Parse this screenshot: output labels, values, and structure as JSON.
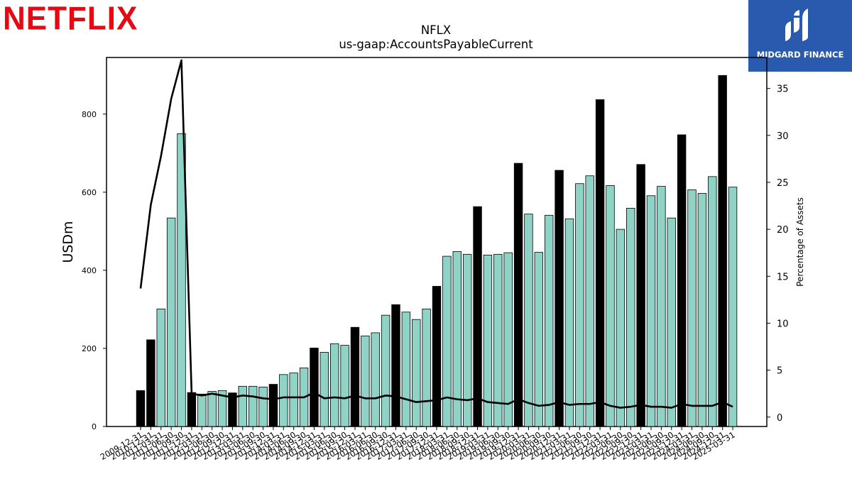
{
  "brand_left": {
    "name": "NETFLIX",
    "color": "#E50914"
  },
  "brand_right": {
    "name": "MIDGARD FINANCE",
    "icon": "midgard-logo-icon",
    "background": "#2a5aad"
  },
  "colors": {
    "bar_annual": "#000000",
    "bar_quarterly": "#8fd3c6",
    "line": "#000000"
  },
  "chart_data": {
    "type": "bar",
    "title": "NFLX",
    "subtitle": "us-gaap:AccountsPayableCurrent",
    "ylabel": "USDm",
    "y2label": "Percentage of Assets",
    "ylim": [
      0,
      945
    ],
    "y2lim": [
      -1,
      38.3
    ],
    "yticks": [
      "0",
      "200",
      "400",
      "600",
      "800"
    ],
    "y2ticks": [
      "0",
      "5",
      "10",
      "15",
      "20",
      "25",
      "30",
      "35"
    ],
    "grid": false,
    "categories": [
      "2009-12-31",
      "2010-12-31",
      "2011-03-31",
      "2011-06-30",
      "2011-09-30",
      "2011-12-31",
      "2012-03-31",
      "2012-06-30",
      "2012-09-30",
      "2012-12-31",
      "2013-03-31",
      "2013-06-30",
      "2013-09-30",
      "2013-12-31",
      "2014-03-31",
      "2014-06-30",
      "2014-09-30",
      "2014-12-31",
      "2015-03-31",
      "2015-06-30",
      "2015-09-30",
      "2015-12-31",
      "2016-03-31",
      "2016-06-30",
      "2016-09-30",
      "2016-12-31",
      "2017-03-31",
      "2017-06-30",
      "2017-09-30",
      "2017-12-31",
      "2018-03-31",
      "2018-06-30",
      "2018-09-30",
      "2018-12-31",
      "2019-03-31",
      "2019-06-30",
      "2019-09-30",
      "2019-12-31",
      "2020-03-31",
      "2020-06-30",
      "2020-09-30",
      "2020-12-31",
      "2021-03-31",
      "2021-06-30",
      "2021-09-30",
      "2021-12-31",
      "2022-03-31",
      "2022-06-30",
      "2022-09-30",
      "2022-12-31",
      "2023-03-31",
      "2023-06-30",
      "2023-09-30",
      "2023-12-31",
      "2024-03-31",
      "2024-06-30",
      "2024-09-30",
      "2024-12-31",
      "2025-03-31"
    ],
    "series": [
      {
        "type": "bar",
        "values": [
          92,
          222,
          301,
          534,
          750,
          87,
          83,
          90,
          92,
          86,
          103,
          103,
          101,
          108,
          133,
          137,
          150,
          201,
          190,
          212,
          208,
          254,
          232,
          240,
          285,
          312,
          293,
          274,
          301,
          359,
          436,
          448,
          441,
          563,
          439,
          441,
          445,
          674,
          544,
          446,
          541,
          656,
          532,
          622,
          642,
          837,
          617,
          505,
          559,
          671,
          591,
          615,
          534,
          747,
          606,
          597,
          640,
          899,
          613
        ]
      },
      {
        "type": "line",
        "axis": "right",
        "values": [
          13.7,
          22.6,
          27.8,
          33.9,
          38.0,
          2.5,
          2.3,
          2.5,
          2.3,
          2.1,
          2.3,
          2.2,
          2.0,
          1.9,
          2.1,
          2.1,
          2.1,
          2.6,
          2.0,
          2.1,
          2.0,
          2.3,
          2.0,
          2.0,
          2.3,
          2.2,
          1.9,
          1.6,
          1.7,
          1.8,
          2.1,
          1.9,
          1.8,
          2.0,
          1.6,
          1.5,
          1.4,
          1.9,
          1.5,
          1.2,
          1.3,
          1.6,
          1.3,
          1.4,
          1.4,
          1.6,
          1.2,
          1.0,
          1.1,
          1.3,
          1.1,
          1.1,
          1.0,
          1.4,
          1.2,
          1.2,
          1.2,
          1.6,
          1.1
        ]
      }
    ],
    "annual_categories": [
      "2009-12-31",
      "2010-12-31",
      "2011-12-31",
      "2012-12-31",
      "2013-12-31",
      "2014-12-31",
      "2015-12-31",
      "2016-12-31",
      "2017-12-31",
      "2018-12-31",
      "2019-12-31",
      "2020-12-31",
      "2021-12-31",
      "2022-12-31",
      "2023-12-31",
      "2024-12-31"
    ]
  }
}
